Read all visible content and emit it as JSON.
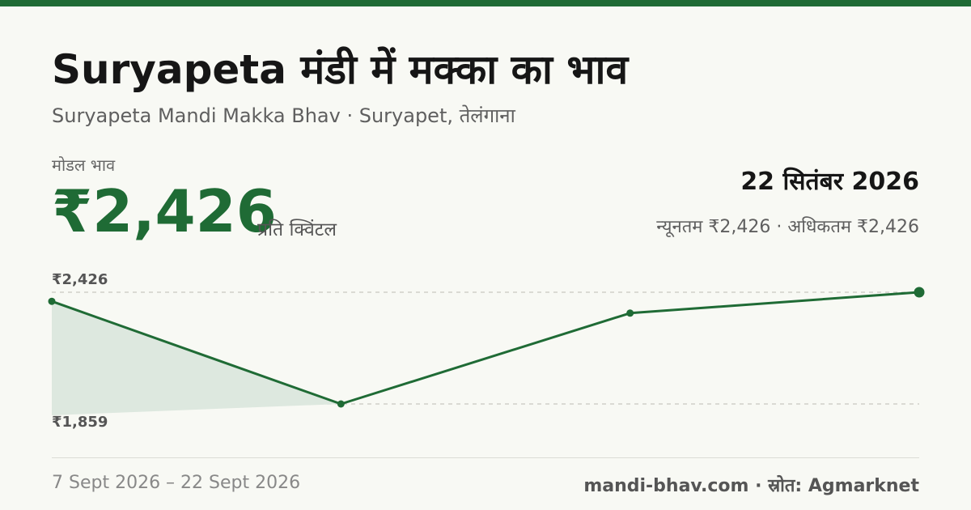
{
  "header": {
    "title": "Suryapeta मंडी में मक्का का भाव",
    "subtitle": "Suryapeta Mandi Makka Bhav · Suryapet, तेलंगाना"
  },
  "summary": {
    "modal_label": "मोडल भाव",
    "modal_price": "₹2,426",
    "unit": "प्रति क्विंटल",
    "date": "22 सितंबर 2026",
    "range": "न्यूनतम ₹2,426 · अधिकतम ₹2,426"
  },
  "footer": {
    "period": "7 Sept 2026 – 22 Sept 2026",
    "source": "mandi-bhav.com · स्रोत: Agmarknet"
  },
  "colors": {
    "accent": "#1f6b35",
    "fill": "#dde8df",
    "gridline": "#c8c8c0"
  },
  "chart_data": {
    "type": "line",
    "x": [
      "2026-09-07",
      "2026-09-12",
      "2026-09-17",
      "2026-09-22"
    ],
    "series": [
      {
        "values": [
          2380,
          1859,
          2320,
          2426
        ]
      }
    ],
    "tick_labels": [
      "₹2,426",
      "₹1,859"
    ],
    "ytick_values": [
      2426,
      1859
    ],
    "ylim": [
      1859,
      2426
    ],
    "grid": true,
    "title": "",
    "xlabel": "",
    "ylabel": ""
  }
}
